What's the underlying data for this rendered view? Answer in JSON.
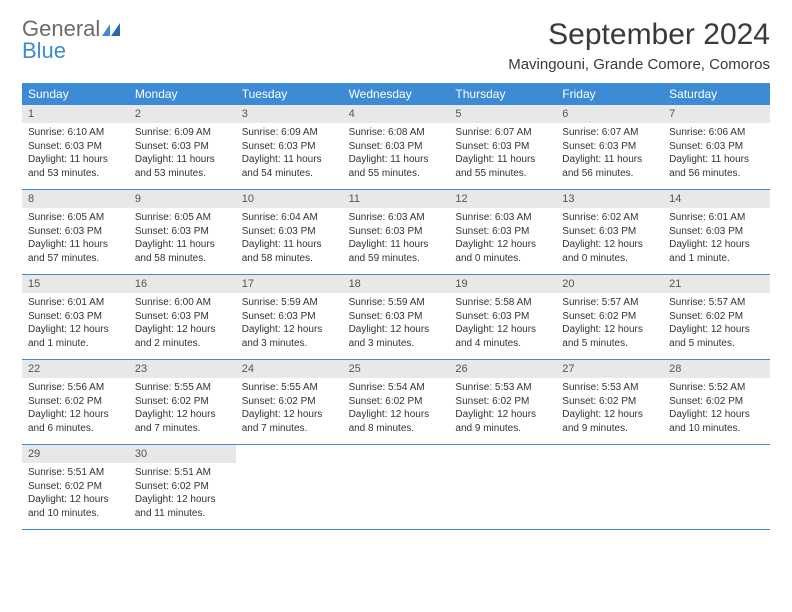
{
  "logo": {
    "line1": "General",
    "line2": "Blue"
  },
  "title": "September 2024",
  "location": "Mavingouni, Grande Comore, Comoros",
  "colors": {
    "header_bg": "#3d8bd4",
    "header_text": "#ffffff",
    "daynum_bg": "#e8e8e8",
    "row_border": "#3d8bd4",
    "logo_gray": "#6b6b6b",
    "logo_blue": "#3d8bd4"
  },
  "day_headers": [
    "Sunday",
    "Monday",
    "Tuesday",
    "Wednesday",
    "Thursday",
    "Friday",
    "Saturday"
  ],
  "days": [
    {
      "n": "1",
      "sunrise": "Sunrise: 6:10 AM",
      "sunset": "Sunset: 6:03 PM",
      "daylight": "Daylight: 11 hours and 53 minutes."
    },
    {
      "n": "2",
      "sunrise": "Sunrise: 6:09 AM",
      "sunset": "Sunset: 6:03 PM",
      "daylight": "Daylight: 11 hours and 53 minutes."
    },
    {
      "n": "3",
      "sunrise": "Sunrise: 6:09 AM",
      "sunset": "Sunset: 6:03 PM",
      "daylight": "Daylight: 11 hours and 54 minutes."
    },
    {
      "n": "4",
      "sunrise": "Sunrise: 6:08 AM",
      "sunset": "Sunset: 6:03 PM",
      "daylight": "Daylight: 11 hours and 55 minutes."
    },
    {
      "n": "5",
      "sunrise": "Sunrise: 6:07 AM",
      "sunset": "Sunset: 6:03 PM",
      "daylight": "Daylight: 11 hours and 55 minutes."
    },
    {
      "n": "6",
      "sunrise": "Sunrise: 6:07 AM",
      "sunset": "Sunset: 6:03 PM",
      "daylight": "Daylight: 11 hours and 56 minutes."
    },
    {
      "n": "7",
      "sunrise": "Sunrise: 6:06 AM",
      "sunset": "Sunset: 6:03 PM",
      "daylight": "Daylight: 11 hours and 56 minutes."
    },
    {
      "n": "8",
      "sunrise": "Sunrise: 6:05 AM",
      "sunset": "Sunset: 6:03 PM",
      "daylight": "Daylight: 11 hours and 57 minutes."
    },
    {
      "n": "9",
      "sunrise": "Sunrise: 6:05 AM",
      "sunset": "Sunset: 6:03 PM",
      "daylight": "Daylight: 11 hours and 58 minutes."
    },
    {
      "n": "10",
      "sunrise": "Sunrise: 6:04 AM",
      "sunset": "Sunset: 6:03 PM",
      "daylight": "Daylight: 11 hours and 58 minutes."
    },
    {
      "n": "11",
      "sunrise": "Sunrise: 6:03 AM",
      "sunset": "Sunset: 6:03 PM",
      "daylight": "Daylight: 11 hours and 59 minutes."
    },
    {
      "n": "12",
      "sunrise": "Sunrise: 6:03 AM",
      "sunset": "Sunset: 6:03 PM",
      "daylight": "Daylight: 12 hours and 0 minutes."
    },
    {
      "n": "13",
      "sunrise": "Sunrise: 6:02 AM",
      "sunset": "Sunset: 6:03 PM",
      "daylight": "Daylight: 12 hours and 0 minutes."
    },
    {
      "n": "14",
      "sunrise": "Sunrise: 6:01 AM",
      "sunset": "Sunset: 6:03 PM",
      "daylight": "Daylight: 12 hours and 1 minute."
    },
    {
      "n": "15",
      "sunrise": "Sunrise: 6:01 AM",
      "sunset": "Sunset: 6:03 PM",
      "daylight": "Daylight: 12 hours and 1 minute."
    },
    {
      "n": "16",
      "sunrise": "Sunrise: 6:00 AM",
      "sunset": "Sunset: 6:03 PM",
      "daylight": "Daylight: 12 hours and 2 minutes."
    },
    {
      "n": "17",
      "sunrise": "Sunrise: 5:59 AM",
      "sunset": "Sunset: 6:03 PM",
      "daylight": "Daylight: 12 hours and 3 minutes."
    },
    {
      "n": "18",
      "sunrise": "Sunrise: 5:59 AM",
      "sunset": "Sunset: 6:03 PM",
      "daylight": "Daylight: 12 hours and 3 minutes."
    },
    {
      "n": "19",
      "sunrise": "Sunrise: 5:58 AM",
      "sunset": "Sunset: 6:03 PM",
      "daylight": "Daylight: 12 hours and 4 minutes."
    },
    {
      "n": "20",
      "sunrise": "Sunrise: 5:57 AM",
      "sunset": "Sunset: 6:02 PM",
      "daylight": "Daylight: 12 hours and 5 minutes."
    },
    {
      "n": "21",
      "sunrise": "Sunrise: 5:57 AM",
      "sunset": "Sunset: 6:02 PM",
      "daylight": "Daylight: 12 hours and 5 minutes."
    },
    {
      "n": "22",
      "sunrise": "Sunrise: 5:56 AM",
      "sunset": "Sunset: 6:02 PM",
      "daylight": "Daylight: 12 hours and 6 minutes."
    },
    {
      "n": "23",
      "sunrise": "Sunrise: 5:55 AM",
      "sunset": "Sunset: 6:02 PM",
      "daylight": "Daylight: 12 hours and 7 minutes."
    },
    {
      "n": "24",
      "sunrise": "Sunrise: 5:55 AM",
      "sunset": "Sunset: 6:02 PM",
      "daylight": "Daylight: 12 hours and 7 minutes."
    },
    {
      "n": "25",
      "sunrise": "Sunrise: 5:54 AM",
      "sunset": "Sunset: 6:02 PM",
      "daylight": "Daylight: 12 hours and 8 minutes."
    },
    {
      "n": "26",
      "sunrise": "Sunrise: 5:53 AM",
      "sunset": "Sunset: 6:02 PM",
      "daylight": "Daylight: 12 hours and 9 minutes."
    },
    {
      "n": "27",
      "sunrise": "Sunrise: 5:53 AM",
      "sunset": "Sunset: 6:02 PM",
      "daylight": "Daylight: 12 hours and 9 minutes."
    },
    {
      "n": "28",
      "sunrise": "Sunrise: 5:52 AM",
      "sunset": "Sunset: 6:02 PM",
      "daylight": "Daylight: 12 hours and 10 minutes."
    },
    {
      "n": "29",
      "sunrise": "Sunrise: 5:51 AM",
      "sunset": "Sunset: 6:02 PM",
      "daylight": "Daylight: 12 hours and 10 minutes."
    },
    {
      "n": "30",
      "sunrise": "Sunrise: 5:51 AM",
      "sunset": "Sunset: 6:02 PM",
      "daylight": "Daylight: 12 hours and 11 minutes."
    }
  ]
}
